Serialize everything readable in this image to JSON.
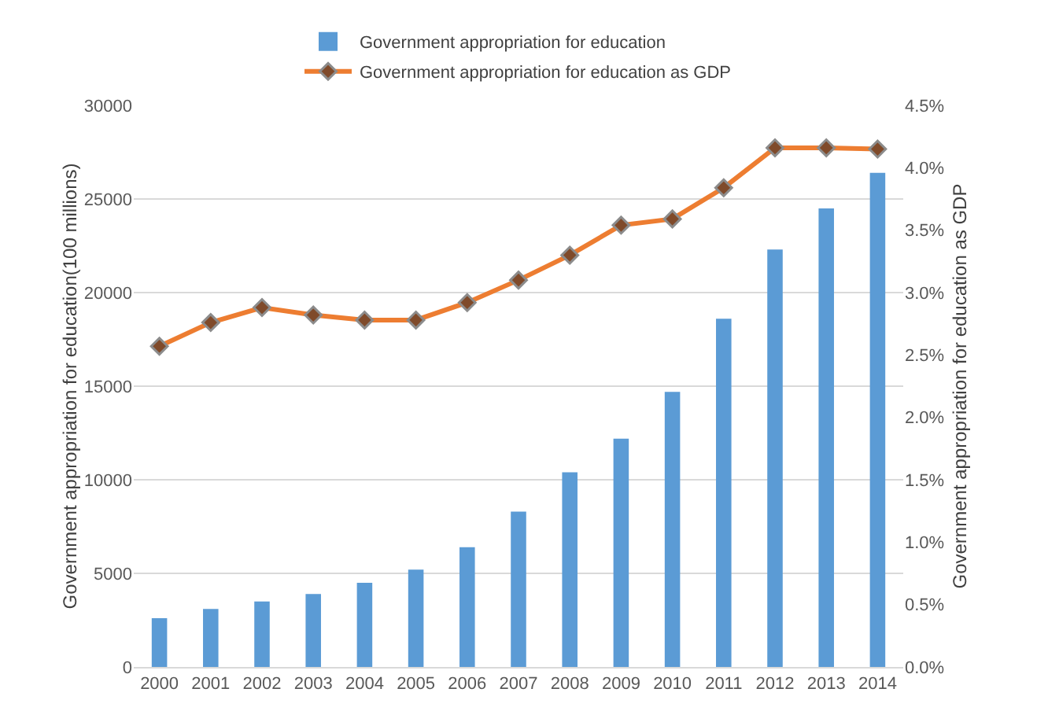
{
  "chart_data": {
    "type": "bar",
    "categories": [
      "2000",
      "2001",
      "2002",
      "2003",
      "2004",
      "2005",
      "2006",
      "2007",
      "2008",
      "2009",
      "2010",
      "2011",
      "2012",
      "2013",
      "2014"
    ],
    "series": [
      {
        "name": "Government appropriation for education",
        "color": "#5b9bd5",
        "values": [
          2600,
          3100,
          3500,
          3900,
          4500,
          5200,
          6400,
          8300,
          10400,
          12200,
          14700,
          18600,
          22300,
          24500,
          26400
        ]
      },
      {
        "name": "Government appropriation for education as GDP",
        "type": "line",
        "axis": "y2",
        "color": "#ed7d31",
        "marker": "diamond",
        "values": [
          2.57,
          2.76,
          2.88,
          2.82,
          2.78,
          2.78,
          2.92,
          3.1,
          3.3,
          3.54,
          3.59,
          3.84,
          4.16,
          4.16,
          4.15
        ]
      }
    ],
    "ylabel": "Government appropriation for education(100 millions)",
    "y2label": "Government appropriation for education as GDP",
    "ylim": [
      0,
      30000
    ],
    "yticks": [
      0,
      5000,
      10000,
      15000,
      20000,
      25000,
      30000
    ],
    "y2lim": [
      0,
      4.5
    ],
    "y2ticks": [
      {
        "value": 0,
        "label": "0.0%"
      },
      {
        "value": 0.5,
        "label": "0.5%"
      },
      {
        "value": 1,
        "label": "1.0%"
      },
      {
        "value": 1.5,
        "label": "1.5%"
      },
      {
        "value": 2,
        "label": "2.0%"
      },
      {
        "value": 2.5,
        "label": "2.5%"
      },
      {
        "value": 3,
        "label": "3.0%"
      },
      {
        "value": 3.5,
        "label": "3.5%"
      },
      {
        "value": 4,
        "label": "4.0%"
      },
      {
        "value": 4.5,
        "label": "4.5%"
      }
    ],
    "grid": "y",
    "legend": "top"
  }
}
